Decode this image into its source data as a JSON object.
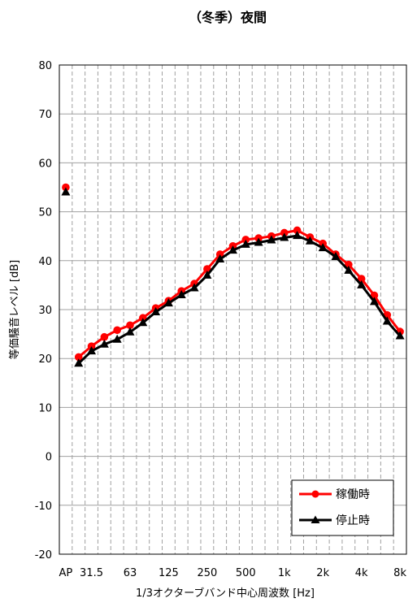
{
  "chart_data": {
    "type": "line",
    "title": "（冬季）夜間",
    "xlabel": "1/3オクターブバンド中心周波数 [Hz]",
    "ylabel": "等価騒音レベル [dB]",
    "ylim": [
      -20,
      80
    ],
    "yticks": [
      -20,
      -10,
      0,
      10,
      20,
      30,
      40,
      50,
      60,
      70,
      80
    ],
    "grid": true,
    "legend_position": "bottom-right",
    "x_slots": [
      "AP",
      "25",
      "31.5",
      "40",
      "50",
      "63",
      "80",
      "100",
      "125",
      "160",
      "200",
      "250",
      "315",
      "400",
      "500",
      "630",
      "800",
      "1k",
      "1.25k",
      "1.6k",
      "2k",
      "2.5k",
      "3.15k",
      "4k",
      "5k",
      "6.3k",
      "8k"
    ],
    "xtick_labels": [
      {
        "slot": 0,
        "label": "AP"
      },
      {
        "slot": 2,
        "label": "31.5"
      },
      {
        "slot": 5,
        "label": "63"
      },
      {
        "slot": 8,
        "label": "125"
      },
      {
        "slot": 11,
        "label": "250"
      },
      {
        "slot": 14,
        "label": "500"
      },
      {
        "slot": 17,
        "label": "1k"
      },
      {
        "slot": 20,
        "label": "2k"
      },
      {
        "slot": 23,
        "label": "4k"
      },
      {
        "slot": 26,
        "label": "8k"
      }
    ],
    "series": [
      {
        "name": "稼働時",
        "color": "#ff0000",
        "marker": "circle",
        "ap_value": 55.0,
        "values": [
          null,
          20.3,
          22.5,
          24.4,
          25.8,
          26.8,
          28.3,
          30.3,
          31.8,
          33.8,
          35.3,
          38.3,
          41.3,
          43.0,
          44.3,
          44.6,
          45.0,
          45.7,
          46.2,
          44.8,
          43.5,
          41.3,
          39.2,
          36.3,
          32.9,
          28.9,
          25.5
        ]
      },
      {
        "name": "停止時",
        "color": "#000000",
        "marker": "triangle",
        "ap_value": 54.0,
        "values": [
          null,
          19.0,
          21.5,
          22.9,
          23.9,
          25.4,
          27.3,
          29.5,
          31.3,
          33.0,
          34.4,
          37.0,
          40.3,
          42.1,
          43.3,
          43.7,
          44.2,
          44.7,
          45.1,
          44.0,
          42.6,
          40.8,
          38.0,
          35.0,
          31.6,
          27.6,
          24.6
        ]
      }
    ]
  }
}
